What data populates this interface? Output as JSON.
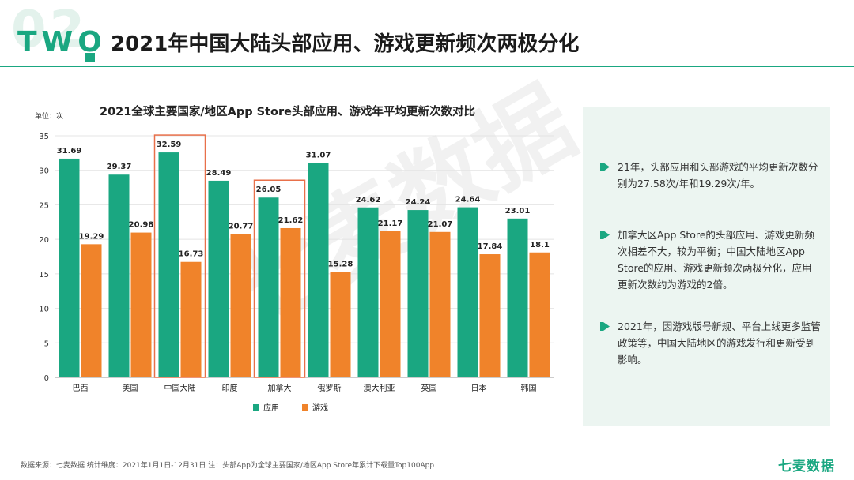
{
  "header": {
    "section_number": "02",
    "section_word": "TWO",
    "title": "2021年中国大陆头部应用、游戏更新频次两极分化"
  },
  "chart_data": {
    "type": "bar",
    "title": "2021全球主要国家/地区App Store头部应用、游戏年平均更新次数对比",
    "unit_label": "单位：次",
    "categories": [
      "巴西",
      "美国",
      "中国大陆",
      "印度",
      "加拿大",
      "俄罗斯",
      "澳大利亚",
      "英国",
      "日本",
      "韩国"
    ],
    "series": [
      {
        "name": "应用",
        "color": "#1aa781",
        "values": [
          31.69,
          29.37,
          32.59,
          28.49,
          26.05,
          31.07,
          24.62,
          24.24,
          24.64,
          23.01
        ]
      },
      {
        "name": "游戏",
        "color": "#f0832a",
        "values": [
          19.29,
          20.98,
          16.73,
          20.77,
          21.62,
          15.28,
          21.17,
          21.07,
          17.84,
          18.1
        ]
      }
    ],
    "data_labels": [
      [
        "31.69",
        "29.37",
        "32.59",
        "28.49",
        "26.05",
        "31.07",
        "24.62",
        "24.24",
        "24.64",
        "23.01"
      ],
      [
        "19.29",
        "20.98",
        "16.73",
        "20.77",
        "21.62",
        "15.28",
        "21.17",
        "21.07",
        "17.84",
        "18.1"
      ]
    ],
    "ylim": [
      0,
      35
    ],
    "yticks": [
      "0",
      "5",
      "10",
      "15",
      "20",
      "25",
      "30",
      "35"
    ],
    "highlight_categories": [
      "中国大陆",
      "加拿大"
    ],
    "highlight_color": "#e8704a",
    "grid": true,
    "legend_position": "bottom"
  },
  "insights": [
    "21年，头部应用和头部游戏的平均更新次数分别为27.58次/年和19.29次/年。",
    "加拿大区App Store的头部应用、游戏更新频次相差不大，较为平衡；中国大陆地区App Store的应用、游戏更新频次两极分化，应用更新次数约为游戏的2倍。",
    "2021年，因游戏版号新规、平台上线更多监管政策等，中国大陆地区的游戏发行和更新受到影响。"
  ],
  "footer": {
    "source": "数据来源：七麦数据  统计维度：2021年1月1日-12月31日  注：头部App为全球主要国家/地区App Store年累计下载量Top100App",
    "brand": "七麦数据"
  },
  "watermark": "七麦数据",
  "colors": {
    "accent": "#1aa781",
    "orange": "#f0832a",
    "panel_bg": "#ecf5f1"
  }
}
